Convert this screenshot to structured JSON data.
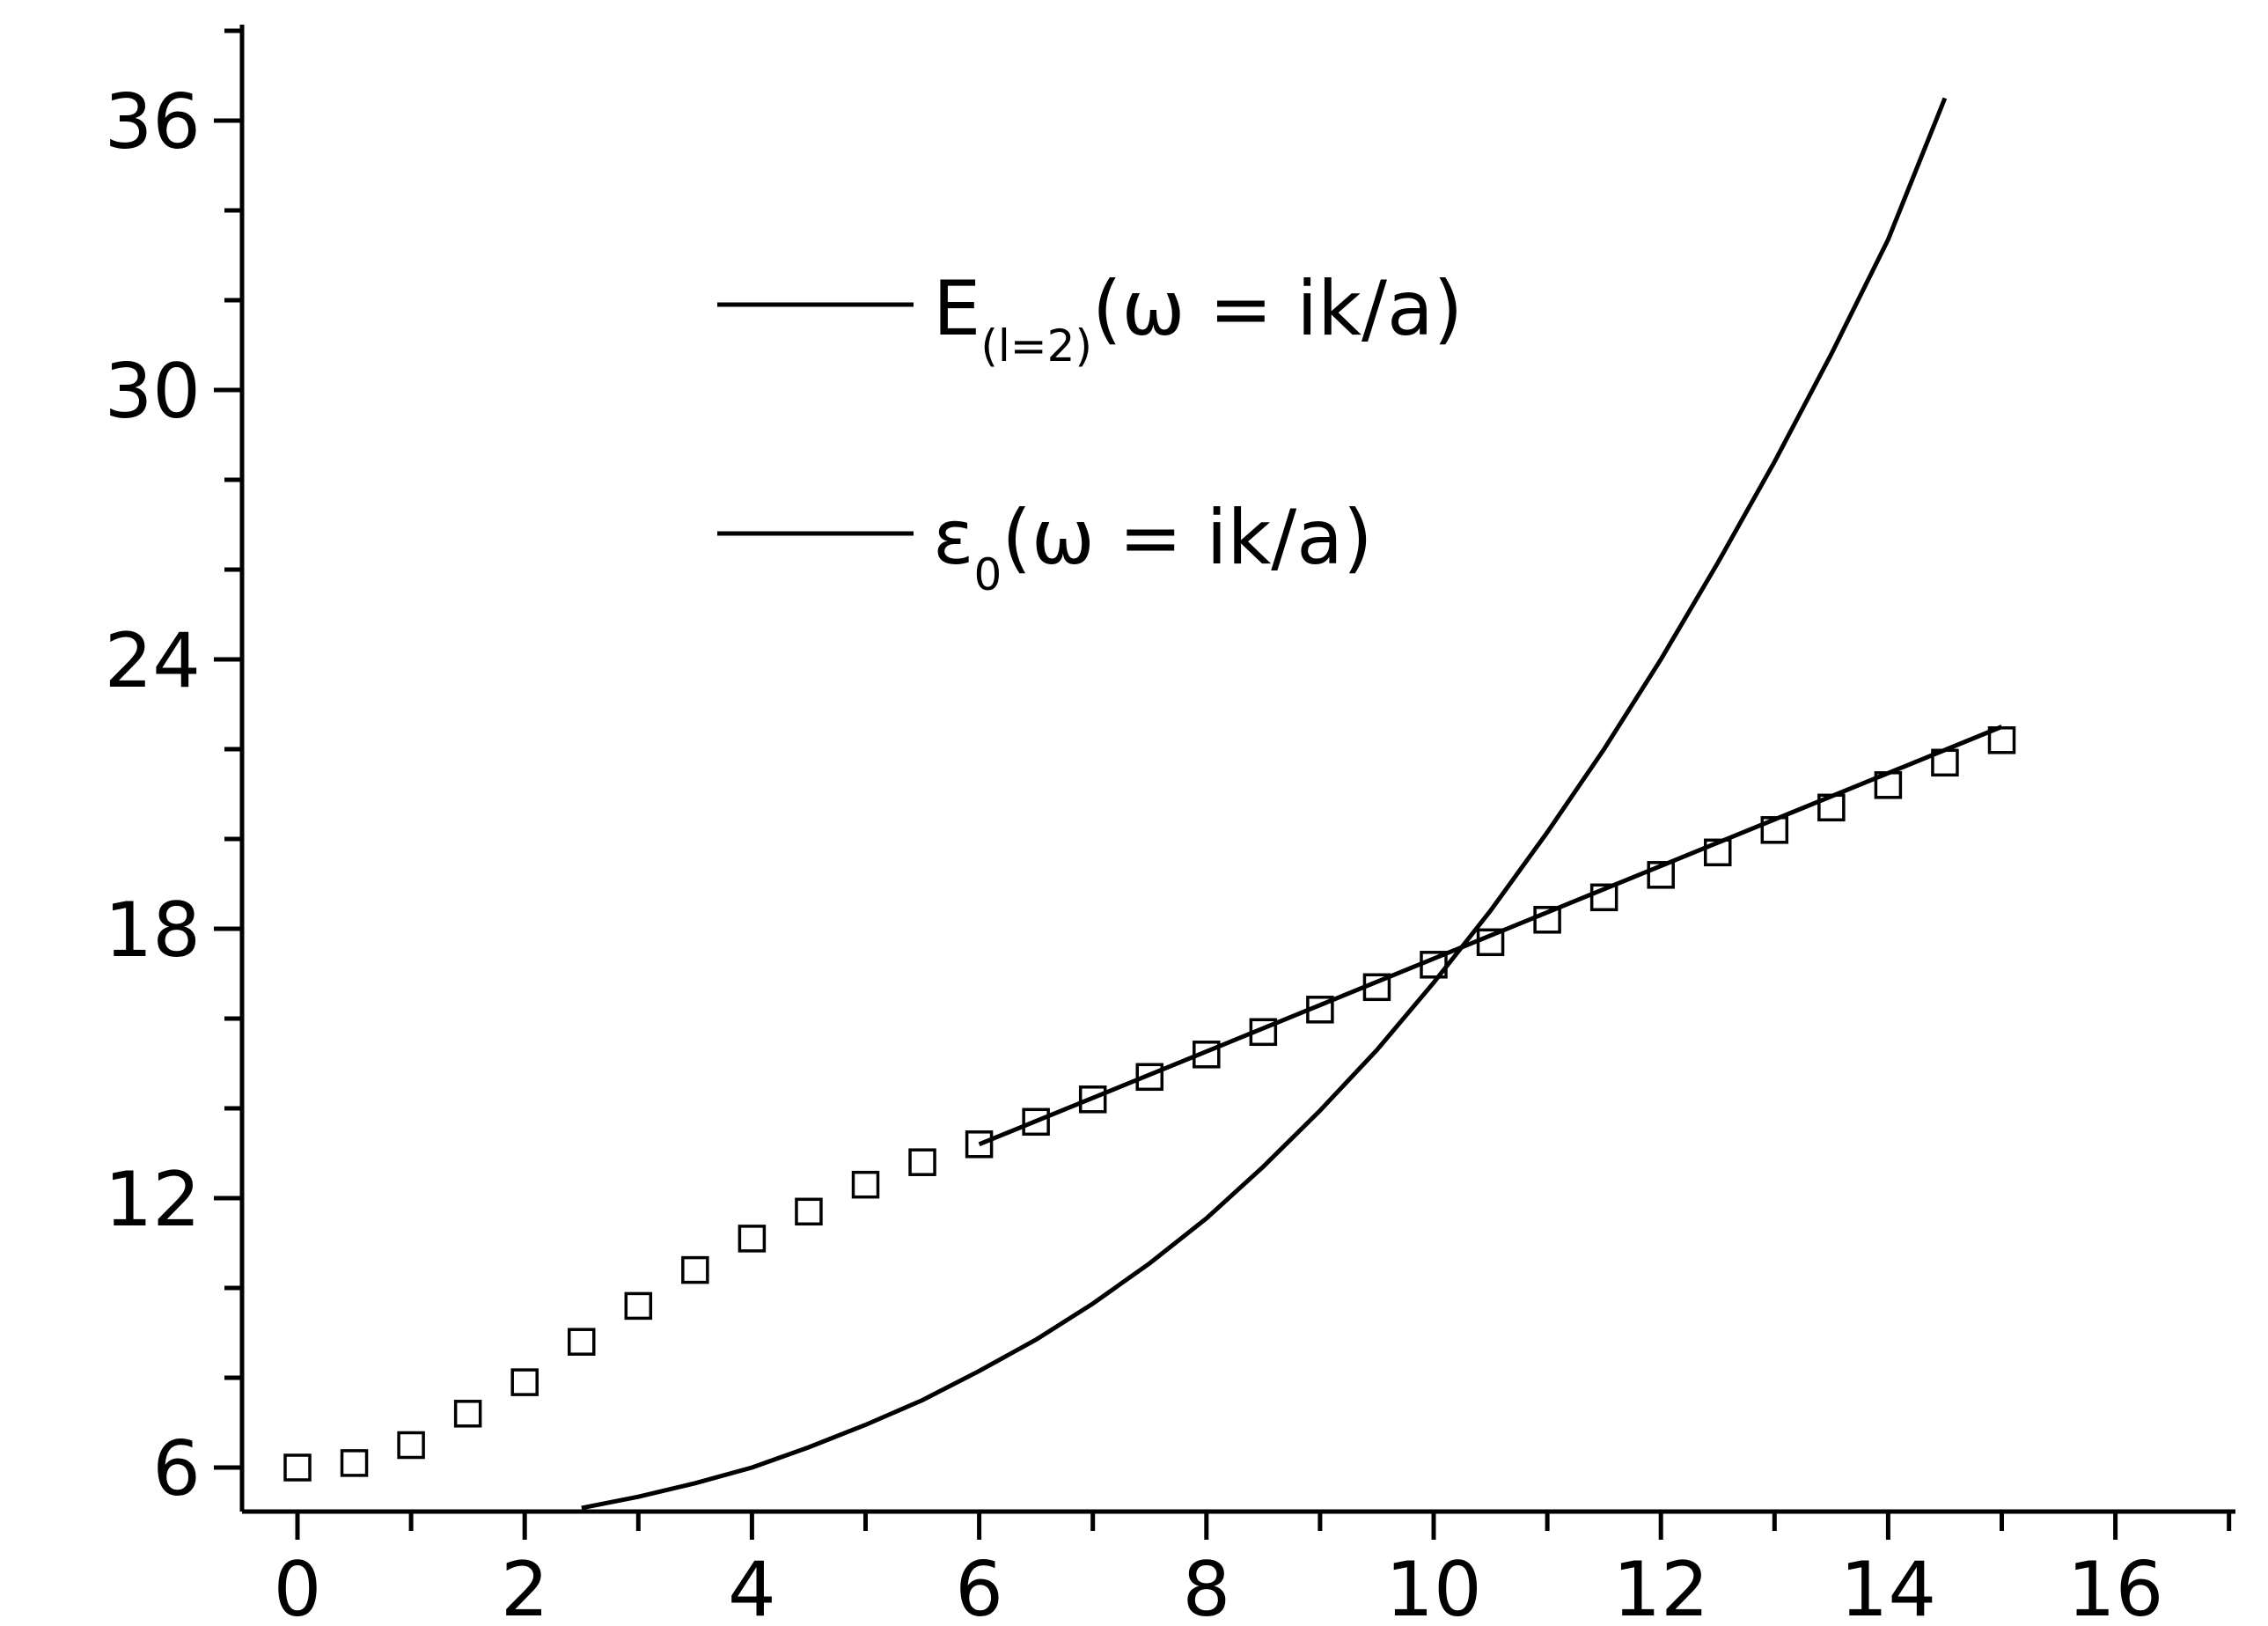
{
  "chart_data": {
    "type": "line",
    "title": "",
    "xlabel": "",
    "ylabel": "",
    "xlim": [
      -0.5,
      16.5
    ],
    "ylim": [
      5,
      38
    ],
    "x_ticks": [
      0,
      2,
      4,
      6,
      8,
      10,
      12,
      14,
      16
    ],
    "x_tick_labels": [
      "0",
      "2",
      "4",
      "6",
      "8",
      "10",
      "12",
      "14",
      "16"
    ],
    "y_ticks": [
      6,
      12,
      18,
      24,
      30,
      36
    ],
    "y_tick_labels": [
      "6",
      "12",
      "18",
      "24",
      "30",
      "36"
    ],
    "grid": false,
    "legend_position": "upper-left",
    "legend": [
      {
        "main": "E",
        "sub": "(l=2)",
        "rest": "(ω = ik/a)"
      },
      {
        "main": "ε",
        "sub": "0",
        "rest": "(ω = ik/a)"
      }
    ],
    "series": [
      {
        "name": "E(l=2)(ω = ik/a)",
        "style": "line",
        "x": [
          2.5,
          3,
          3.5,
          4,
          4.5,
          5,
          5.5,
          6,
          6.5,
          7,
          7.5,
          8,
          8.5,
          9,
          9.5,
          10,
          10.5,
          11,
          11.5,
          12,
          12.5,
          13,
          13.5,
          14,
          14.5
        ],
        "y": [
          5.1,
          5.35,
          5.65,
          6.0,
          6.45,
          6.95,
          7.5,
          8.15,
          8.85,
          9.65,
          10.55,
          11.55,
          12.7,
          13.95,
          15.3,
          16.8,
          18.4,
          20.15,
          22.0,
          24.0,
          26.15,
          28.4,
          30.8,
          33.35,
          36.5
        ]
      },
      {
        "name": "ε0(ω = ik/a)",
        "style": "line",
        "x": [
          6,
          15
        ],
        "y": [
          13.2,
          22.5
        ]
      },
      {
        "name": "",
        "style": "square-markers",
        "x": [
          0,
          0.5,
          1,
          1.5,
          2,
          2.5,
          3,
          3.5,
          4,
          4.5,
          5,
          5.5,
          6,
          6.5,
          7,
          7.5,
          8,
          8.5,
          9,
          9.5,
          10,
          10.5,
          11,
          11.5,
          12,
          12.5,
          13,
          13.5,
          14,
          14.5,
          15
        ],
        "y": [
          6.0,
          6.1,
          6.5,
          7.2,
          7.9,
          8.8,
          9.6,
          10.4,
          11.1,
          11.7,
          12.3,
          12.8,
          13.2,
          13.7,
          14.2,
          14.7,
          15.2,
          15.7,
          16.2,
          16.7,
          17.2,
          17.7,
          18.2,
          18.7,
          19.2,
          19.7,
          20.2,
          20.7,
          21.2,
          21.7,
          22.2
        ]
      }
    ]
  }
}
